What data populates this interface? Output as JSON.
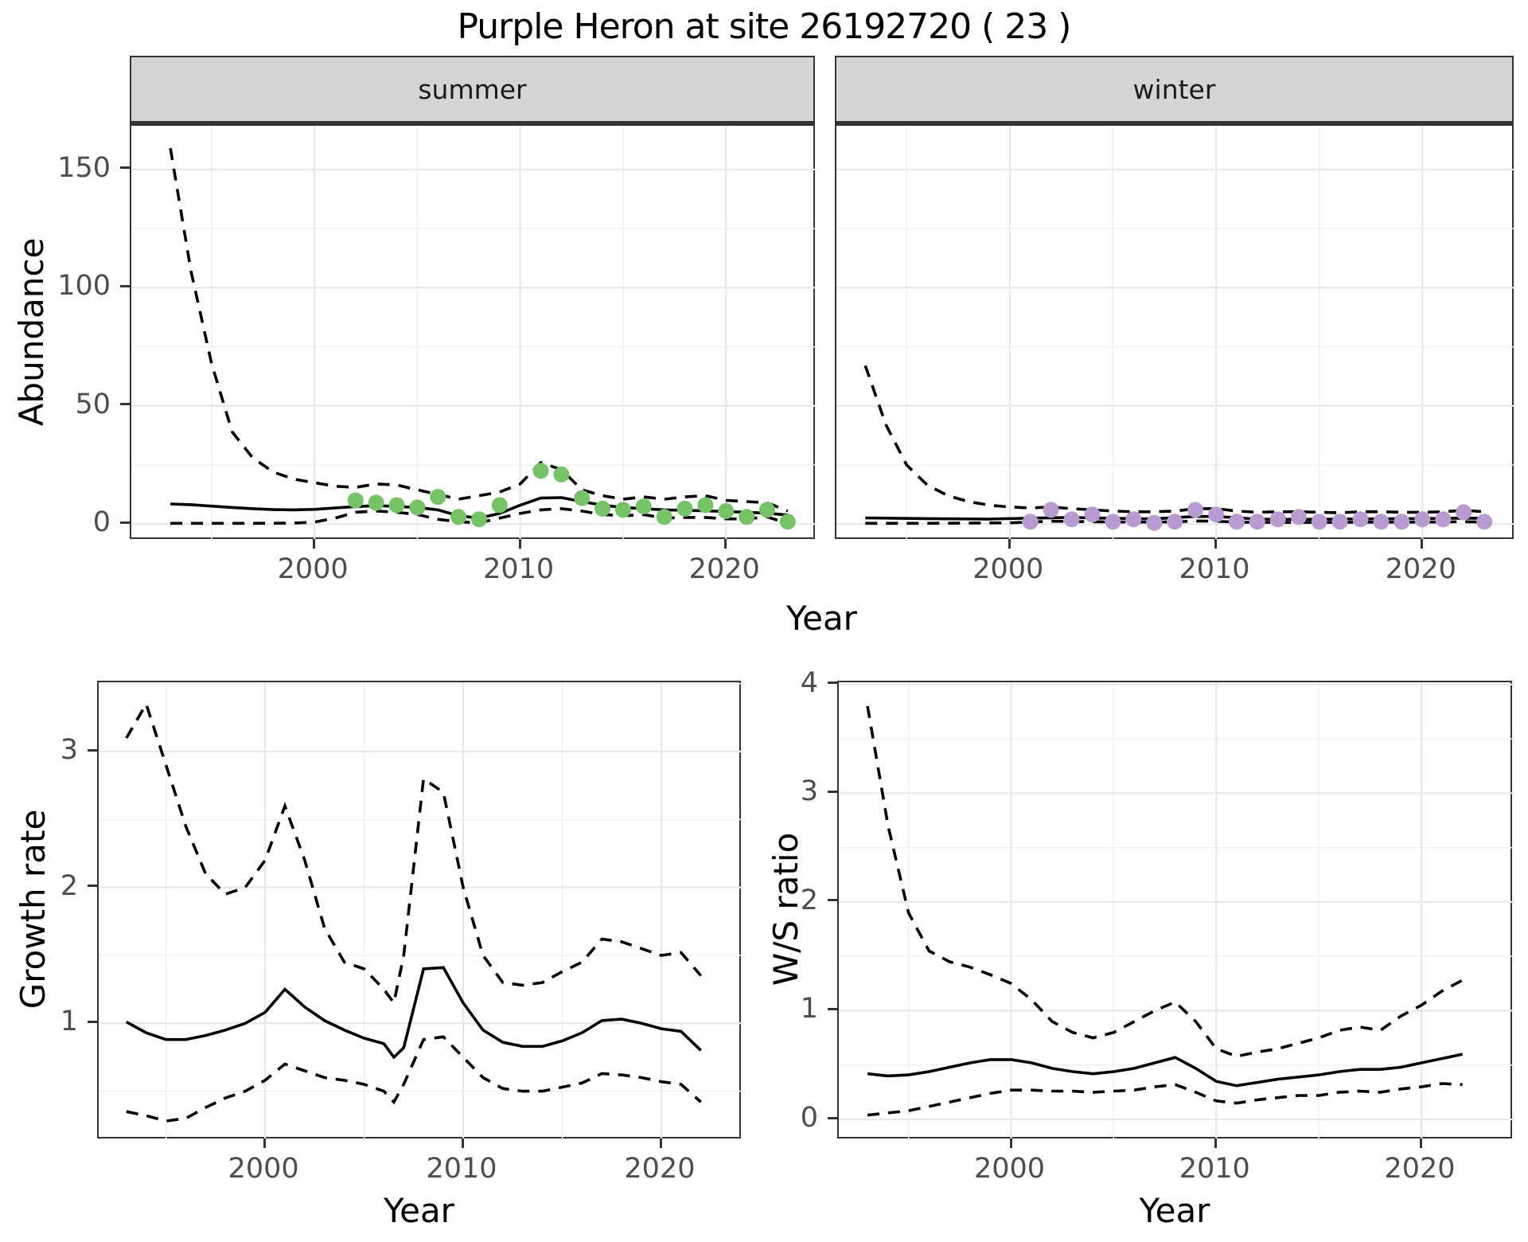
{
  "title": "Purple Heron at site 26192720 ( 23 )",
  "colors": {
    "summer_point": "#74c364",
    "winter_point": "#b79bd1",
    "line": "#000000",
    "strip_bg": "#d5d5d5",
    "grid_major": "#e8e8e8",
    "grid_minor": "#f0f0f0",
    "panel_border": "#333333",
    "tick_text": "#4d4d4d"
  },
  "chart_data": [
    {
      "type": "line",
      "facet_label": "summer",
      "xlabel": "Year",
      "ylabel": "Abundance",
      "xlim": [
        1991.1,
        2024.4
      ],
      "ylim": [
        -7,
        168.5
      ],
      "xticks": [
        2000,
        2010,
        2020
      ],
      "yticks": [
        0,
        50,
        100,
        150
      ],
      "point_color": "#74c364",
      "series": [
        {
          "name": "upper_ci",
          "geom": "line",
          "linetype": "dashed",
          "x": [
            1993,
            1994,
            1995,
            1996,
            1997,
            1998,
            1999,
            2000,
            2001,
            2002,
            2003,
            2004,
            2005,
            2006,
            2007,
            2008,
            2009,
            2010,
            2011,
            2012,
            2013,
            2014,
            2015,
            2016,
            2017,
            2018,
            2019,
            2020,
            2021,
            2022,
            2023
          ],
          "y": [
            159,
            107,
            68,
            39,
            28,
            22,
            19,
            17.5,
            16,
            15.5,
            17,
            16.5,
            14.5,
            12.5,
            10.5,
            12,
            13.5,
            17,
            26,
            23,
            14.5,
            12,
            10.5,
            11.5,
            10.5,
            11.5,
            12,
            10,
            9.5,
            9,
            5.5
          ]
        },
        {
          "name": "lower_ci",
          "geom": "line",
          "linetype": "dashed",
          "x": [
            1993,
            1995,
            1997,
            1999,
            2000,
            2001,
            2002,
            2003,
            2004,
            2005,
            2006,
            2007,
            2008,
            2009,
            2010,
            2011,
            2012,
            2013,
            2014,
            2015,
            2016,
            2017,
            2018,
            2019,
            2020,
            2021,
            2022,
            2023
          ],
          "y": [
            0.3,
            0.3,
            0.3,
            0.4,
            0.8,
            2.5,
            5,
            5.5,
            5,
            4,
            2,
            1,
            0.5,
            2.5,
            4.5,
            6,
            6.5,
            5.5,
            4,
            3.5,
            4,
            2.5,
            2.8,
            2.8,
            2.2,
            2.2,
            3,
            0.3
          ]
        },
        {
          "name": "mean",
          "geom": "line",
          "linetype": "solid",
          "x": [
            1993,
            1994,
            1995,
            1996,
            1997,
            1998,
            1999,
            2000,
            2001,
            2002,
            2003,
            2004,
            2005,
            2006,
            2007,
            2008,
            2009,
            2010,
            2011,
            2012,
            2013,
            2014,
            2015,
            2016,
            2017,
            2018,
            2019,
            2020,
            2021,
            2022,
            2023
          ],
          "y": [
            8.5,
            8.2,
            7.6,
            7,
            6.5,
            6.1,
            6,
            6.2,
            6.8,
            7.4,
            7.8,
            7.5,
            7,
            6,
            3.5,
            2.5,
            4.5,
            8,
            11,
            11.2,
            9.5,
            8,
            7,
            6.5,
            6,
            5.8,
            5.6,
            5.3,
            5,
            4.6,
            3.8
          ]
        },
        {
          "name": "observed",
          "geom": "point",
          "x": [
            2002,
            2003,
            2004,
            2005,
            2006,
            2007,
            2008,
            2009,
            2011,
            2012,
            2013,
            2014,
            2015,
            2016,
            2017,
            2018,
            2019,
            2020,
            2021,
            2022,
            2023
          ],
          "y": [
            10,
            9,
            8,
            7,
            11.5,
            3,
            2,
            8,
            22.5,
            21,
            11,
            6.5,
            6,
            7.5,
            3,
            6.5,
            8,
            5.5,
            3,
            6,
            1
          ]
        }
      ]
    },
    {
      "type": "line",
      "facet_label": "winter",
      "xlabel": "Year",
      "ylabel": "Abundance",
      "xlim": [
        1991.6,
        2024.5
      ],
      "ylim": [
        -7,
        168.5
      ],
      "xticks": [
        2000,
        2010,
        2020
      ],
      "yticks": [
        0,
        50,
        100,
        150
      ],
      "point_color": "#b79bd1",
      "series": [
        {
          "name": "upper_ci",
          "geom": "line",
          "linetype": "dashed",
          "x": [
            1993,
            1994,
            1995,
            1996,
            1997,
            1998,
            1999,
            2000,
            2001,
            2002,
            2003,
            2004,
            2005,
            2006,
            2007,
            2008,
            2009,
            2010,
            2011,
            2012,
            2013,
            2014,
            2015,
            2016,
            2017,
            2018,
            2019,
            2020,
            2021,
            2022,
            2023
          ],
          "y": [
            67,
            42,
            25,
            16.5,
            12,
            9.5,
            8,
            7.2,
            6.8,
            7.2,
            6.5,
            6,
            5.5,
            5.2,
            5.2,
            5.5,
            6.5,
            6.5,
            5.5,
            5,
            5.2,
            5.2,
            5,
            4.8,
            5.2,
            5.2,
            5,
            5,
            5.2,
            5.8,
            5.2
          ]
        },
        {
          "name": "lower_ci",
          "geom": "line",
          "linetype": "dashed",
          "x": [
            1993,
            1996,
            2000,
            2002,
            2004,
            2006,
            2008,
            2009,
            2010,
            2011,
            2012,
            2014,
            2016,
            2018,
            2020,
            2022,
            2023
          ],
          "y": [
            0.3,
            0.3,
            0.5,
            1.2,
            1,
            0.8,
            0.9,
            1.3,
            1.2,
            0.8,
            0.7,
            0.7,
            0.7,
            0.8,
            0.8,
            1,
            0.8
          ]
        },
        {
          "name": "mean",
          "geom": "line",
          "linetype": "solid",
          "x": [
            1993,
            1996,
            1999,
            2001,
            2003,
            2005,
            2007,
            2009,
            2010,
            2012,
            2014,
            2016,
            2018,
            2020,
            2022,
            2023
          ],
          "y": [
            2.6,
            2.3,
            2.1,
            2.5,
            2.8,
            2.4,
            2.2,
            3.2,
            3.2,
            2.1,
            2,
            2.1,
            2.2,
            2.3,
            2.5,
            2.4
          ]
        },
        {
          "name": "observed",
          "geom": "point",
          "x": [
            2001,
            2002,
            2003,
            2004,
            2005,
            2006,
            2007,
            2008,
            2009,
            2010,
            2011,
            2012,
            2013,
            2014,
            2015,
            2016,
            2017,
            2018,
            2019,
            2020,
            2021,
            2022,
            2023
          ],
          "y": [
            1,
            6,
            2,
            4,
            1,
            2,
            0.5,
            1,
            6,
            4,
            1,
            1,
            2,
            3,
            1,
            1,
            2,
            1,
            1,
            2,
            2,
            5,
            1
          ]
        }
      ]
    },
    {
      "type": "line",
      "facet_label": "",
      "xlabel": "Year",
      "ylabel": "Growth rate",
      "xlim": [
        1991.6,
        2024.1
      ],
      "ylim": [
        0.14,
        3.51
      ],
      "xticks": [
        2000,
        2010,
        2020
      ],
      "yticks": [
        1,
        2,
        3
      ],
      "point_color": "#000000",
      "series": [
        {
          "name": "upper_ci",
          "geom": "line",
          "linetype": "dashed",
          "x": [
            1993,
            1994,
            1995,
            1996,
            1997,
            1998,
            1999,
            2000,
            2001,
            2002,
            2003,
            2004,
            2005,
            2006,
            2006.5,
            2007,
            2008,
            2009,
            2010,
            2011,
            2012,
            2013,
            2014,
            2015,
            2016,
            2017,
            2018,
            2019,
            2020,
            2021,
            2022
          ],
          "y": [
            3.1,
            3.35,
            2.9,
            2.45,
            2.1,
            1.95,
            2,
            2.2,
            2.6,
            2.2,
            1.7,
            1.45,
            1.4,
            1.25,
            1.15,
            1.5,
            2.8,
            2.7,
            2,
            1.5,
            1.3,
            1.28,
            1.3,
            1.38,
            1.45,
            1.62,
            1.6,
            1.55,
            1.5,
            1.52,
            1.35
          ]
        },
        {
          "name": "lower_ci",
          "geom": "line",
          "linetype": "dashed",
          "x": [
            1993,
            1994,
            1995,
            1996,
            1997,
            1998,
            1999,
            2000,
            2001,
            2002,
            2003,
            2004,
            2005,
            2006,
            2006.5,
            2007,
            2008,
            2009,
            2010,
            2011,
            2012,
            2013,
            2014,
            2015,
            2016,
            2017,
            2018,
            2019,
            2020,
            2021,
            2022
          ],
          "y": [
            0.35,
            0.32,
            0.28,
            0.3,
            0.38,
            0.45,
            0.5,
            0.58,
            0.7,
            0.65,
            0.6,
            0.58,
            0.55,
            0.5,
            0.42,
            0.55,
            0.88,
            0.9,
            0.75,
            0.6,
            0.52,
            0.5,
            0.5,
            0.53,
            0.56,
            0.63,
            0.62,
            0.6,
            0.57,
            0.55,
            0.42
          ]
        },
        {
          "name": "mean",
          "geom": "line",
          "linetype": "solid",
          "x": [
            1993,
            1994,
            1995,
            1996,
            1997,
            1998,
            1999,
            2000,
            2001,
            2002,
            2003,
            2004,
            2005,
            2006,
            2006.5,
            2007,
            2008,
            2009,
            2010,
            2011,
            2012,
            2013,
            2014,
            2015,
            2016,
            2017,
            2018,
            2019,
            2020,
            2021,
            2022
          ],
          "y": [
            1.01,
            0.93,
            0.88,
            0.88,
            0.91,
            0.95,
            1,
            1.08,
            1.25,
            1.12,
            1.02,
            0.95,
            0.89,
            0.85,
            0.75,
            0.82,
            1.4,
            1.41,
            1.15,
            0.95,
            0.86,
            0.83,
            0.83,
            0.87,
            0.93,
            1.02,
            1.03,
            1,
            0.96,
            0.94,
            0.8
          ]
        }
      ]
    },
    {
      "type": "line",
      "facet_label": "",
      "xlabel": "Year",
      "ylabel": "W/S ratio",
      "xlim": [
        1991.6,
        2024.5
      ],
      "ylim": [
        -0.19,
        4.02
      ],
      "xticks": [
        2000,
        2010,
        2020
      ],
      "yticks": [
        0,
        1,
        2,
        3,
        4
      ],
      "point_color": "#000000",
      "series": [
        {
          "name": "upper_ci",
          "geom": "line",
          "linetype": "dashed",
          "x": [
            1993,
            1994,
            1995,
            1996,
            1997,
            1998,
            1999,
            2000,
            2001,
            2002,
            2003,
            2004,
            2005,
            2006,
            2007,
            2008,
            2009,
            2010,
            2011,
            2012,
            2013,
            2014,
            2015,
            2016,
            2017,
            2018,
            2019,
            2020,
            2021,
            2022
          ],
          "y": [
            3.8,
            2.7,
            1.9,
            1.55,
            1.45,
            1.4,
            1.33,
            1.25,
            1.1,
            0.9,
            0.8,
            0.75,
            0.8,
            0.9,
            1,
            1.08,
            0.9,
            0.65,
            0.58,
            0.62,
            0.65,
            0.7,
            0.75,
            0.82,
            0.85,
            0.82,
            0.95,
            1.05,
            1.18,
            1.28
          ]
        },
        {
          "name": "lower_ci",
          "geom": "line",
          "linetype": "dashed",
          "x": [
            1993,
            1994,
            1995,
            1996,
            1997,
            1998,
            1999,
            2000,
            2001,
            2002,
            2003,
            2004,
            2005,
            2006,
            2007,
            2008,
            2009,
            2010,
            2011,
            2012,
            2013,
            2014,
            2015,
            2016,
            2017,
            2018,
            2019,
            2020,
            2021,
            2022
          ],
          "y": [
            0.04,
            0.06,
            0.08,
            0.12,
            0.16,
            0.2,
            0.24,
            0.27,
            0.27,
            0.26,
            0.26,
            0.25,
            0.26,
            0.27,
            0.3,
            0.32,
            0.25,
            0.17,
            0.15,
            0.18,
            0.2,
            0.22,
            0.22,
            0.25,
            0.26,
            0.25,
            0.28,
            0.3,
            0.33,
            0.32
          ]
        },
        {
          "name": "mean",
          "geom": "line",
          "linetype": "solid",
          "x": [
            1993,
            1994,
            1995,
            1996,
            1997,
            1998,
            1999,
            2000,
            2001,
            2002,
            2003,
            2004,
            2005,
            2006,
            2007,
            2008,
            2009,
            2010,
            2011,
            2012,
            2013,
            2014,
            2015,
            2016,
            2017,
            2018,
            2019,
            2020,
            2021,
            2022
          ],
          "y": [
            0.42,
            0.4,
            0.41,
            0.44,
            0.48,
            0.52,
            0.55,
            0.55,
            0.52,
            0.47,
            0.44,
            0.42,
            0.44,
            0.47,
            0.52,
            0.57,
            0.47,
            0.35,
            0.31,
            0.34,
            0.37,
            0.39,
            0.41,
            0.44,
            0.46,
            0.46,
            0.48,
            0.52,
            0.56,
            0.6
          ]
        }
      ]
    }
  ]
}
